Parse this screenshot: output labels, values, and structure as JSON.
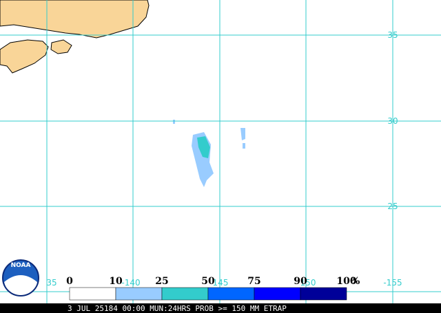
{
  "map": {
    "lat_labels": [
      "35",
      "30",
      "25"
    ],
    "lon_labels": [
      "35",
      "-140",
      "145",
      "150",
      "-155"
    ]
  },
  "legend": {
    "labels": [
      "0",
      "10",
      "25",
      "50",
      "75",
      "90",
      "100"
    ],
    "unit": "%"
  },
  "logo": "NOAA",
  "caption": "3 JUL 25184 00:00 MUN:24HRS PROB >= 150 MM ETRAP"
}
